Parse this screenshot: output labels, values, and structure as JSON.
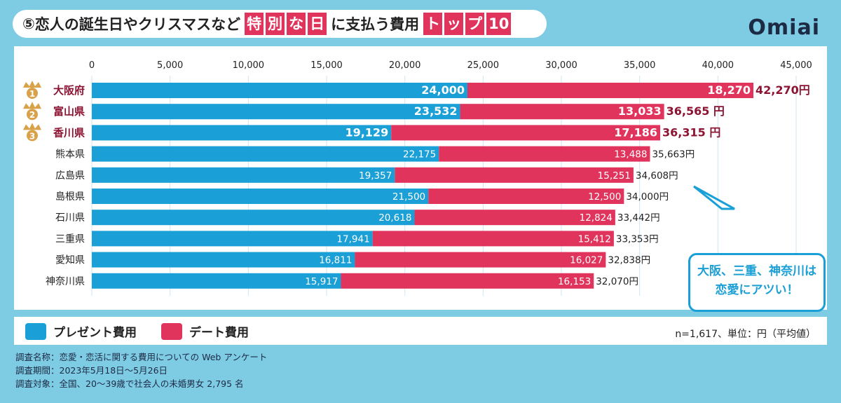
{
  "title": {
    "num": "⑤",
    "text1": "恋人の誕生日やクリスマスなど",
    "hl1": [
      "特",
      "別",
      "な",
      "日"
    ],
    "text2": "に支払う費用",
    "hl2": [
      "ト",
      "ッ",
      "プ",
      "10"
    ]
  },
  "logo": "Omiai",
  "callout": {
    "line1": "大阪、三重、神奈川は",
    "line2": "恋愛にアツい！"
  },
  "legend": {
    "present": "プレゼント費用",
    "date": "デート費用"
  },
  "note": "n=1,617、単位：円（平均値）",
  "survey": [
    "調査名称：恋愛・恋活に関する費用についての Web アンケート",
    "調査期間：2023年5月18日〜5月26日",
    "調査対象：全国、20〜39歳で社会人の未婚男女 2,795 名"
  ],
  "colors": {
    "present": "#1a9fd6",
    "date": "#e0345c",
    "crown": "#d9a24a",
    "rankText": "#8c1432",
    "bg": "#7ecbe4"
  },
  "chart_data": {
    "type": "bar",
    "orientation": "horizontal",
    "stacked": true,
    "xlim": [
      0,
      45000
    ],
    "ticks": [
      "0",
      "5,000",
      "10,000",
      "15,000",
      "20,000",
      "25,000",
      "30,000",
      "35,000",
      "40,000",
      "45,000"
    ],
    "tick_values": [
      0,
      5000,
      10000,
      15000,
      20000,
      25000,
      30000,
      35000,
      40000,
      45000
    ],
    "categories": [
      "大阪府",
      "富山県",
      "香川県",
      "熊本県",
      "広島県",
      "島根県",
      "石川県",
      "三重県",
      "愛知県",
      "神奈川県"
    ],
    "ranks": [
      "1",
      "2",
      "3"
    ],
    "series": [
      {
        "name": "プレゼント費用",
        "values": [
          24000,
          23532,
          19129,
          22175,
          19357,
          21500,
          20618,
          17941,
          16811,
          15917
        ],
        "labels": [
          "24,000",
          "23,532",
          "19,129",
          "22,175",
          "19,357",
          "21,500",
          "20,618",
          "17,941",
          "16,811",
          "15,917"
        ]
      },
      {
        "name": "デート費用",
        "values": [
          18270,
          13033,
          17186,
          13488,
          15251,
          12500,
          12824,
          15412,
          16027,
          16153
        ],
        "labels": [
          "18,270",
          "13,033",
          "17,186",
          "13,488",
          "15,251",
          "12,500",
          "12,824",
          "15,412",
          "16,027",
          "16,153"
        ]
      }
    ],
    "totals": [
      "42,270円",
      "36,565 円",
      "36,315 円",
      "35,663円",
      "34,608円",
      "34,000円",
      "33,442円",
      "33,353円",
      "32,838円",
      "32,070円"
    ]
  }
}
